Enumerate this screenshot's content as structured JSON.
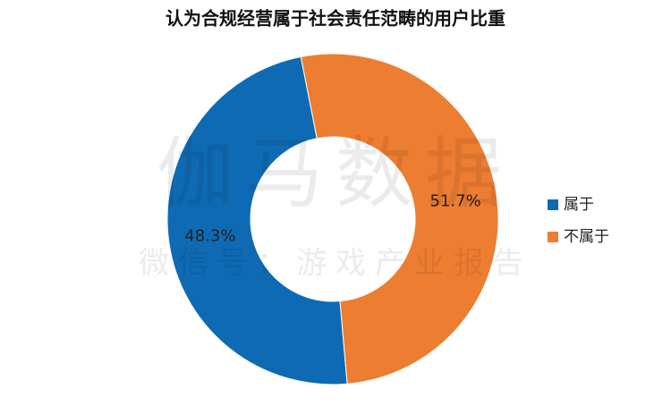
{
  "chart_data": {
    "type": "donut",
    "title": "认为合规经营属于社会责任范畴的用户比重",
    "categories": [
      "属于",
      "不属于"
    ],
    "values": [
      48.3,
      51.7
    ],
    "value_labels": [
      "48.3%",
      "51.7%"
    ],
    "colors": [
      "#0f6ab4",
      "#ed7d31"
    ],
    "legend": "right",
    "watermark": {
      "title": "伽马数据",
      "subtitle": "微信号：游戏产业报告"
    }
  }
}
